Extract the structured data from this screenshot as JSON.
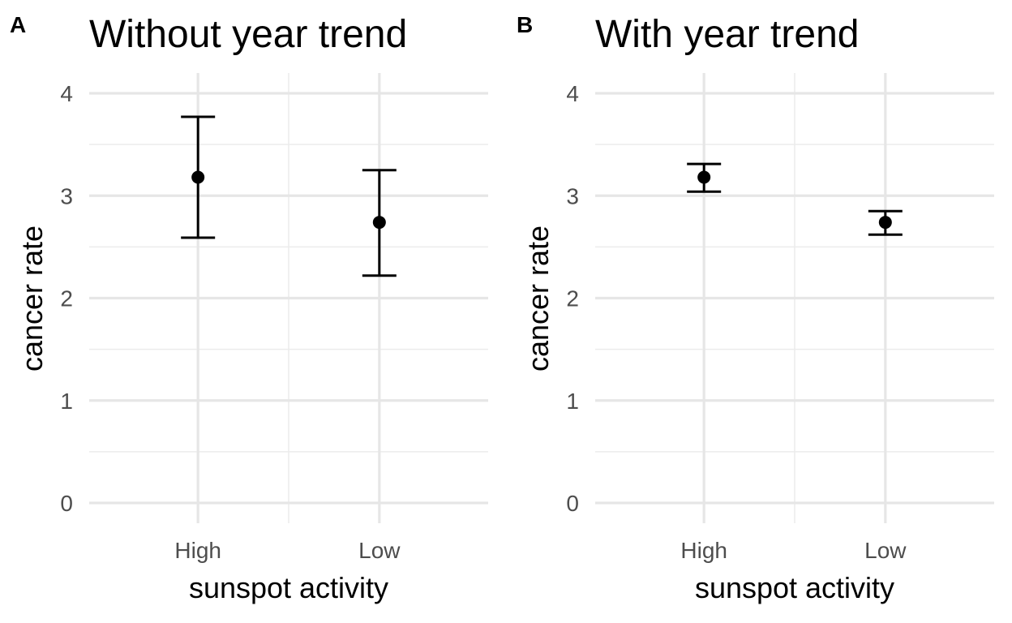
{
  "chart_data": [
    {
      "type": "scatter",
      "panel_label": "A",
      "title": "Without year trend",
      "xlabel": "sunspot activity",
      "ylabel": "cancer rate",
      "categories": [
        "High",
        "Low"
      ],
      "values": [
        3.18,
        2.74
      ],
      "error_low": [
        2.59,
        2.22
      ],
      "error_high": [
        3.77,
        3.25
      ],
      "ylim": [
        -0.2,
        4.2
      ],
      "yticks": [
        0,
        1,
        2,
        3,
        4
      ],
      "grid": true,
      "legend": "none"
    },
    {
      "type": "scatter",
      "panel_label": "B",
      "title": "With year trend",
      "xlabel": "sunspot activity",
      "ylabel": "cancer rate",
      "categories": [
        "High",
        "Low"
      ],
      "values": [
        3.18,
        2.74
      ],
      "error_low": [
        3.04,
        2.62
      ],
      "error_high": [
        3.31,
        2.85
      ],
      "ylim": [
        -0.2,
        4.2
      ],
      "yticks": [
        0,
        1,
        2,
        3,
        4
      ],
      "grid": true,
      "legend": "none"
    }
  ],
  "colors": {
    "points": "#000000",
    "grid": "#e6e6e6",
    "tick_text": "#4d4d4d"
  }
}
